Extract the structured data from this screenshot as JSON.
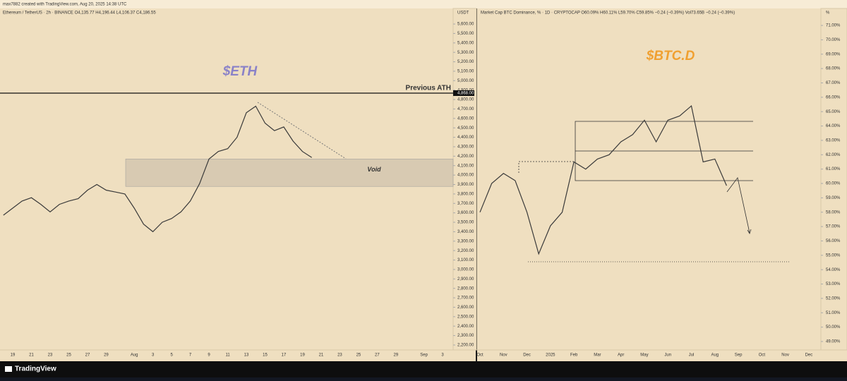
{
  "header": "max7882 created with TradingView.com, Aug 20, 2025 14:38 UTC",
  "footer": "TradingView",
  "chart_data": [
    {
      "type": "line",
      "title": "$ETH",
      "legend_text": "Ethereum / TetherUS · 2h · BINANCE  O4,135.77  H4,196.44  L4,106.37  C4,186.55",
      "unit": "USDT",
      "categories": [
        null,
        "19",
        null,
        "21",
        null,
        "23",
        null,
        "25",
        null,
        "27",
        null,
        "29",
        null,
        null,
        "Aug",
        null,
        "3",
        null,
        "5",
        null,
        "7",
        null,
        "9",
        null,
        "11",
        null,
        "13",
        null,
        "15",
        null,
        "17",
        null,
        "19",
        null,
        "21",
        null,
        "23",
        null,
        "25",
        null,
        "27",
        null,
        "29",
        null,
        null,
        "Sep",
        null,
        "3",
        null
      ],
      "series": [
        {
          "name": "Ethereum / TetherUS",
          "color": "#3a3a3a",
          "values": [
            3575,
            3650,
            3725,
            3760,
            3690,
            3610,
            3690,
            3725,
            3750,
            3840,
            3900,
            3840,
            3820,
            3800,
            3650,
            3480,
            3400,
            3500,
            3540,
            3610,
            3725,
            3910,
            4170,
            4250,
            4280,
            4400,
            4660,
            4730,
            4550,
            4470,
            4510,
            4360,
            4250,
            4186.55,
            null,
            null,
            null,
            null,
            null,
            null,
            null,
            null,
            null,
            null,
            null,
            null,
            null,
            null,
            null
          ]
        }
      ],
      "ylim": [
        2155,
        5690
      ],
      "yticks": [
        {
          "value": 2200,
          "label": "2,200.00"
        },
        {
          "value": 2300,
          "label": "2,300.00"
        },
        {
          "value": 2400,
          "label": "2,400.00"
        },
        {
          "value": 2500,
          "label": "2,500.00"
        },
        {
          "value": 2600,
          "label": "2,600.00"
        },
        {
          "value": 2700,
          "label": "2,700.00"
        },
        {
          "value": 2800,
          "label": "2,800.00"
        },
        {
          "value": 2900,
          "label": "2,900.00"
        },
        {
          "value": 3000,
          "label": "3,000.00"
        },
        {
          "value": 3100,
          "label": "3,100.00"
        },
        {
          "value": 3200,
          "label": "3,200.00"
        },
        {
          "value": 3300,
          "label": "3,300.00"
        },
        {
          "value": 3400,
          "label": "3,400.00"
        },
        {
          "value": 3500,
          "label": "3,500.00"
        },
        {
          "value": 3600,
          "label": "3,600.00"
        },
        {
          "value": 3700,
          "label": "3,700.00"
        },
        {
          "value": 3800,
          "label": "3,800.00"
        },
        {
          "value": 3900,
          "label": "3,900.00"
        },
        {
          "value": 4000,
          "label": "4,000.00"
        },
        {
          "value": 4100,
          "label": "4,100.00"
        },
        {
          "value": 4200,
          "label": "4,200.00"
        },
        {
          "value": 4300,
          "label": "4,300.00"
        },
        {
          "value": 4400,
          "label": "4,400.00"
        },
        {
          "value": 4500,
          "label": "4,500.00"
        },
        {
          "value": 4600,
          "label": "4,600.00"
        },
        {
          "value": 4700,
          "label": "4,700.00"
        },
        {
          "value": 4800,
          "label": "4,800.00"
        },
        {
          "value": 4900,
          "label": "4,900.00"
        },
        {
          "value": 5000,
          "label": "5,000.00"
        },
        {
          "value": 5100,
          "label": "5,100.00"
        },
        {
          "value": 5200,
          "label": "5,200.00"
        },
        {
          "value": 5300,
          "label": "5,300.00"
        },
        {
          "value": 5400,
          "label": "5,400.00"
        },
        {
          "value": 5500,
          "label": "5,500.00"
        },
        {
          "value": 5600,
          "label": "5,600.00"
        }
      ],
      "title_color": "#8a82c8",
      "annotations": [
        {
          "text": "Previous ATH",
          "value": 4868,
          "value_label": "4,868.00"
        },
        {
          "text": "Void",
          "range": [
            3880,
            4170
          ]
        }
      ]
    },
    {
      "type": "line",
      "title": "$BTC.D",
      "legend_text": "Market Cap BTC Dominance, % · 1D · CRYPTOCAP  O60.09%  H60.11%  L59.70%  C59.85%  −0.24 (−0.39%)  Vol73.65B  −0.24 (−0.39%)",
      "unit": "%",
      "categories": [
        "Oct",
        null,
        "Nov",
        null,
        "Dec",
        null,
        "2025",
        null,
        "Feb",
        null,
        "Mar",
        null,
        "Apr",
        null,
        "May",
        null,
        "Jun",
        null,
        "Jul",
        null,
        "Aug",
        null,
        "Sep",
        null,
        "Oct",
        null,
        "Nov",
        null,
        "Dec",
        null
      ],
      "series": [
        {
          "name": "Market Cap BTC Dominance, %",
          "color": "#3a3a3a",
          "values": [
            58.0,
            60.0,
            60.7,
            60.2,
            58.0,
            55.1,
            57.05,
            58.0,
            61.5,
            61.0,
            61.7,
            62.0,
            62.9,
            63.4,
            64.4,
            62.9,
            64.4,
            64.7,
            65.4,
            61.5,
            61.7,
            59.85,
            null,
            null,
            null,
            null,
            null,
            null,
            null,
            null
          ]
        }
      ],
      "ylim": [
        48.46,
        71.69
      ],
      "yticks": [
        {
          "value": 49,
          "label": "49.00%"
        },
        {
          "value": 50,
          "label": "50.00%"
        },
        {
          "value": 51,
          "label": "51.00%"
        },
        {
          "value": 52,
          "label": "52.00%"
        },
        {
          "value": 53,
          "label": "53.00%"
        },
        {
          "value": 54,
          "label": "54.00%"
        },
        {
          "value": 55,
          "label": "55.00%"
        },
        {
          "value": 56,
          "label": "56.00%"
        },
        {
          "value": 57,
          "label": "57.00%"
        },
        {
          "value": 58,
          "label": "58.00%"
        },
        {
          "value": 59,
          "label": "59.00%"
        },
        {
          "value": 60,
          "label": "60.00%"
        },
        {
          "value": 61,
          "label": "61.00%"
        },
        {
          "value": 62,
          "label": "62.00%"
        },
        {
          "value": 63,
          "label": "63.00%"
        },
        {
          "value": 64,
          "label": "64.00%"
        },
        {
          "value": 65,
          "label": "65.00%"
        },
        {
          "value": 66,
          "label": "66.00%"
        },
        {
          "value": 67,
          "label": "67.00%"
        },
        {
          "value": 68,
          "label": "68.00%"
        },
        {
          "value": 69,
          "label": "69.00%"
        },
        {
          "value": 70,
          "label": "70.00%"
        },
        {
          "value": 71,
          "label": "71.00%"
        }
      ],
      "title_color": "#f0a030"
    }
  ]
}
